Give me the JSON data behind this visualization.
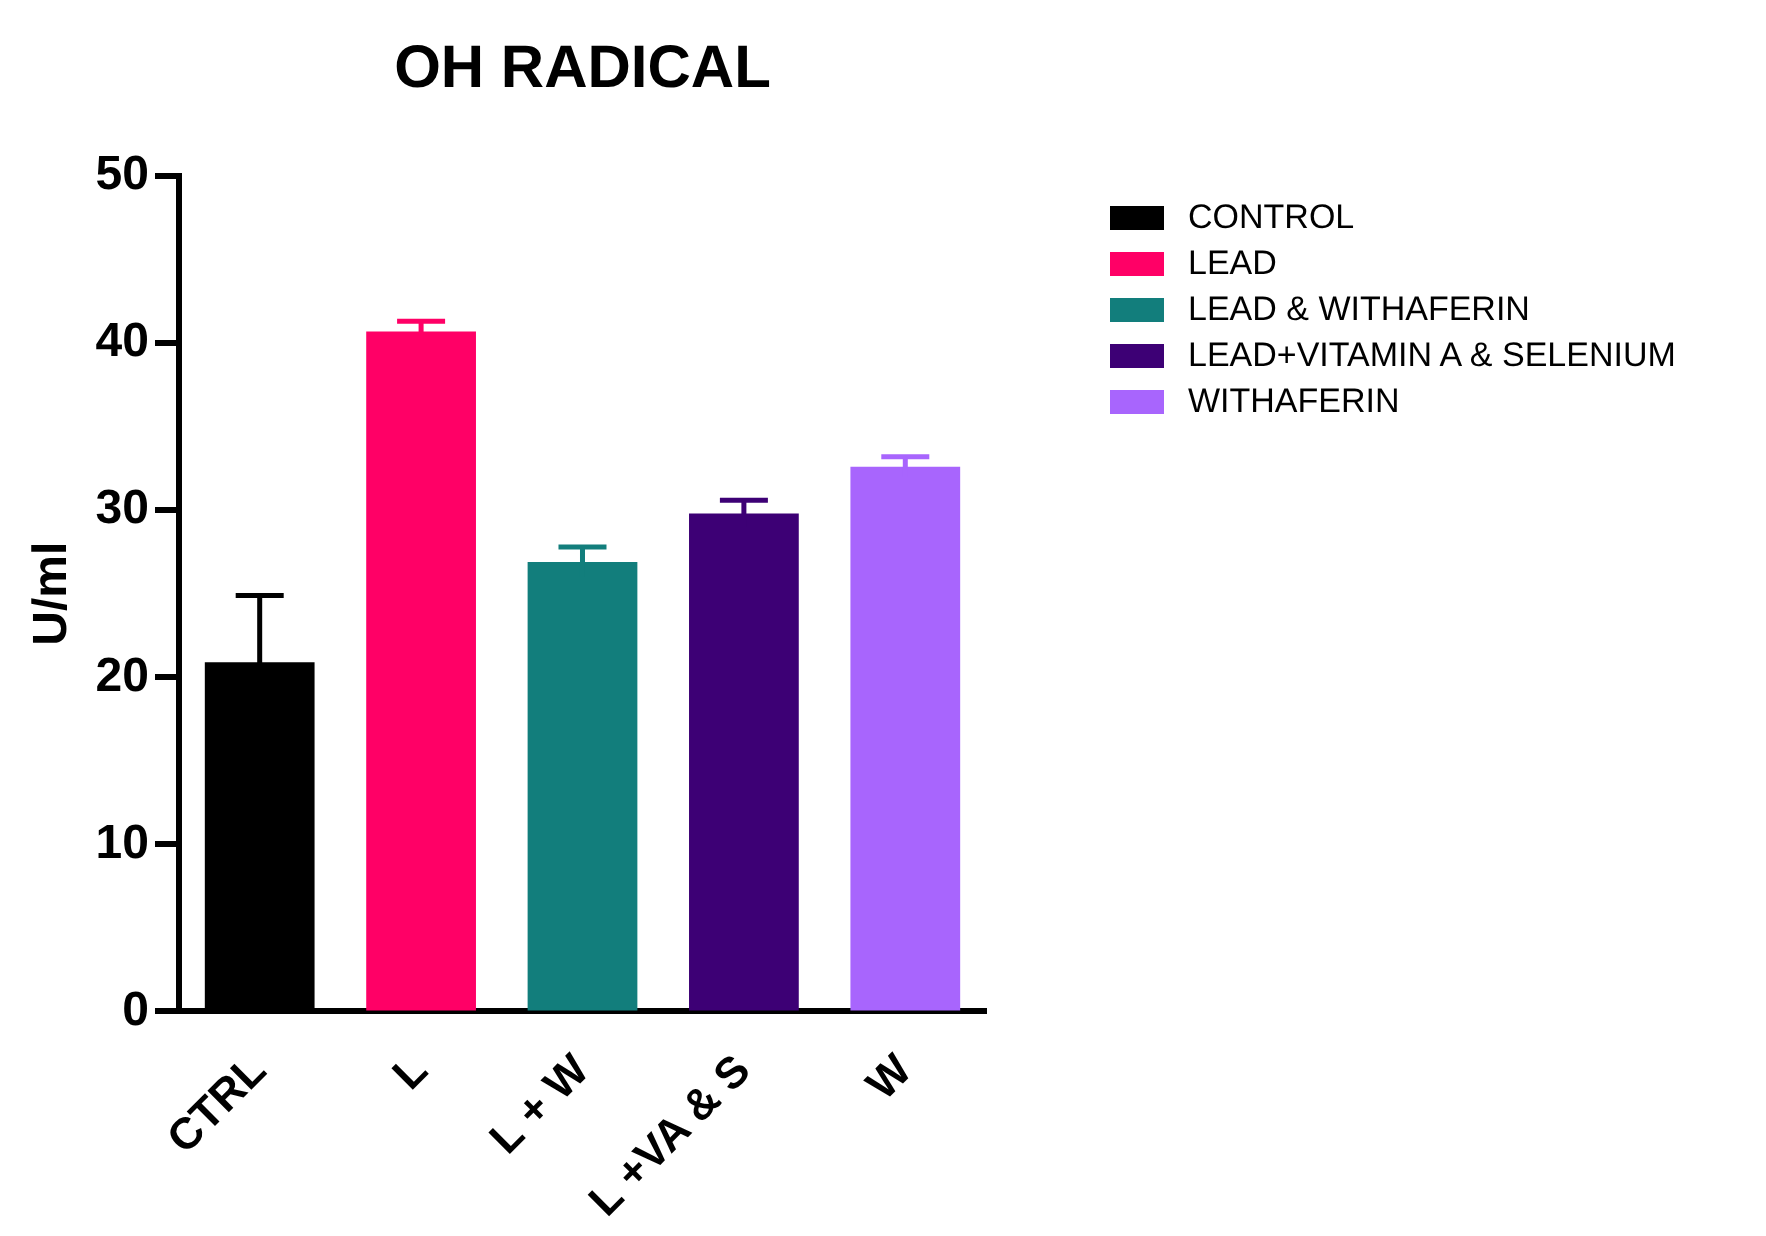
{
  "chart_data": {
    "type": "bar",
    "title": "OH RADICAL",
    "ylabel": "U/ml",
    "categories": [
      "CTRL",
      "L",
      "L + W",
      "L +VA & S",
      "W"
    ],
    "series": [
      {
        "name": "CONTROL",
        "color": "#000000",
        "values": [
          20.9,
          null,
          null,
          null,
          null
        ],
        "errors": [
          4.0,
          null,
          null,
          null,
          null
        ]
      },
      {
        "name": "LEAD",
        "color": "#ff0066",
        "values": [
          null,
          40.7,
          null,
          null,
          null
        ],
        "errors": [
          null,
          0.6,
          null,
          null,
          null
        ]
      },
      {
        "name": "LEAD & WITHAFERIN",
        "color": "#127e7c",
        "values": [
          null,
          null,
          26.9,
          null,
          null
        ],
        "errors": [
          null,
          null,
          0.9,
          null,
          null
        ]
      },
      {
        "name": "LEAD+VITAMIN A & SELENIUM",
        "color": "#3d0075",
        "values": [
          null,
          null,
          null,
          29.8,
          null
        ],
        "errors": [
          null,
          null,
          null,
          0.8,
          null
        ]
      },
      {
        "name": "WITHAFERIN",
        "color": "#a865fd",
        "values": [
          null,
          null,
          null,
          null,
          32.6
        ],
        "errors": [
          null,
          null,
          null,
          null,
          0.6
        ]
      }
    ],
    "ylim": [
      0,
      50
    ],
    "yticks": [
      0,
      10,
      20,
      30,
      40,
      50
    ],
    "grid": false,
    "legend": "top right"
  }
}
